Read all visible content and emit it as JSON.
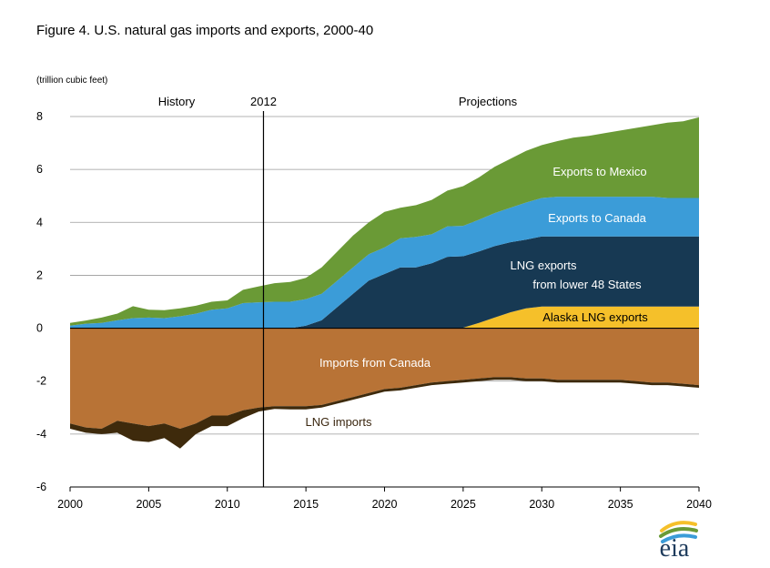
{
  "chart_data": {
    "type": "area",
    "title": "Figure 4. U.S. natural gas imports and exports, 2000-40",
    "ylabel": "(trillion cubic feet)",
    "xlabel": "",
    "xlim": [
      2000,
      2040
    ],
    "ylim": [
      -6,
      8
    ],
    "x_ticks": [
      2000,
      2005,
      2010,
      2015,
      2020,
      2025,
      2030,
      2035,
      2040
    ],
    "y_ticks": [
      -6,
      -4,
      -2,
      0,
      2,
      4,
      6,
      8
    ],
    "grid": true,
    "annotations": {
      "history": "History",
      "divider_year_label": "2012",
      "divider_year": 2012.3,
      "projections": "Projections"
    },
    "x": [
      2000,
      2001,
      2002,
      2003,
      2004,
      2005,
      2006,
      2007,
      2008,
      2009,
      2010,
      2011,
      2012,
      2013,
      2014,
      2015,
      2016,
      2017,
      2018,
      2019,
      2020,
      2021,
      2022,
      2023,
      2024,
      2025,
      2026,
      2027,
      2028,
      2029,
      2030,
      2031,
      2032,
      2033,
      2034,
      2035,
      2036,
      2037,
      2038,
      2039,
      2040
    ],
    "series": [
      {
        "name": "Alaska LNG exports",
        "label": "Alaska LNG exports",
        "color": "#f5c02a",
        "label_color": "#000000",
        "group": "exports",
        "values": [
          0,
          0,
          0,
          0,
          0,
          0,
          0,
          0,
          0,
          0,
          0,
          0,
          0,
          0,
          0,
          0,
          0,
          0,
          0,
          0,
          0,
          0,
          0,
          0,
          0,
          0.02,
          0.2,
          0.4,
          0.6,
          0.75,
          0.82,
          0.82,
          0.82,
          0.82,
          0.82,
          0.82,
          0.82,
          0.82,
          0.82,
          0.82,
          0.82
        ]
      },
      {
        "name": "LNG exports from lower 48 States",
        "label_line1": "LNG exports",
        "label_line2": "from lower 48 States",
        "color": "#173953",
        "label_color": "#ffffff",
        "group": "exports",
        "values": [
          0,
          0,
          0,
          0,
          0,
          0,
          0,
          0,
          0,
          0,
          0,
          0,
          0,
          0,
          0,
          0.1,
          0.3,
          0.8,
          1.3,
          1.8,
          2.05,
          2.3,
          2.3,
          2.45,
          2.7,
          2.7,
          2.7,
          2.7,
          2.65,
          2.6,
          2.65,
          2.65,
          2.65,
          2.65,
          2.65,
          2.65,
          2.65,
          2.65,
          2.65,
          2.65,
          2.65
        ]
      },
      {
        "name": "Exports to Canada",
        "label": "Exports to Canada",
        "color": "#3b9cd8",
        "label_color": "#ffffff",
        "group": "exports",
        "values": [
          0.1,
          0.17,
          0.2,
          0.3,
          0.38,
          0.4,
          0.38,
          0.45,
          0.55,
          0.7,
          0.75,
          0.95,
          0.98,
          1.0,
          1.0,
          1.0,
          1.0,
          1.0,
          1.0,
          1.0,
          1.0,
          1.1,
          1.15,
          1.1,
          1.15,
          1.15,
          1.2,
          1.25,
          1.3,
          1.4,
          1.45,
          1.5,
          1.5,
          1.5,
          1.5,
          1.5,
          1.5,
          1.5,
          1.45,
          1.45,
          1.45
        ]
      },
      {
        "name": "Exports to Mexico",
        "label": "Exports to Mexico",
        "color": "#6a9a36",
        "label_color": "#ffffff",
        "group": "exports",
        "values": [
          0.1,
          0.12,
          0.2,
          0.25,
          0.45,
          0.3,
          0.3,
          0.3,
          0.3,
          0.3,
          0.3,
          0.5,
          0.6,
          0.7,
          0.75,
          0.8,
          1.0,
          1.1,
          1.2,
          1.2,
          1.35,
          1.15,
          1.2,
          1.3,
          1.35,
          1.5,
          1.6,
          1.75,
          1.85,
          1.95,
          2.0,
          2.1,
          2.23,
          2.3,
          2.4,
          2.5,
          2.6,
          2.7,
          2.85,
          2.9,
          3.05
        ]
      },
      {
        "name": "Imports from Canada",
        "label": "Imports from Canada",
        "color": "#b87336",
        "label_color": "#ffffff",
        "group": "imports",
        "values": [
          -3.6,
          -3.75,
          -3.8,
          -3.5,
          -3.6,
          -3.7,
          -3.6,
          -3.8,
          -3.6,
          -3.3,
          -3.3,
          -3.1,
          -3.0,
          -2.95,
          -2.95,
          -2.95,
          -2.9,
          -2.75,
          -2.6,
          -2.45,
          -2.3,
          -2.25,
          -2.15,
          -2.05,
          -2.0,
          -1.95,
          -1.9,
          -1.85,
          -1.85,
          -1.9,
          -1.9,
          -1.95,
          -1.95,
          -1.95,
          -1.95,
          -1.95,
          -2.0,
          -2.05,
          -2.05,
          -2.1,
          -2.15
        ]
      },
      {
        "name": "LNG imports",
        "label": "LNG imports",
        "color": "#3e2a0c",
        "label_color": "#3b2710",
        "group": "imports",
        "values": [
          -0.2,
          -0.2,
          -0.2,
          -0.45,
          -0.65,
          -0.6,
          -0.55,
          -0.75,
          -0.4,
          -0.4,
          -0.4,
          -0.3,
          -0.15,
          -0.1,
          -0.12,
          -0.12,
          -0.1,
          -0.1,
          -0.1,
          -0.1,
          -0.1,
          -0.1,
          -0.1,
          -0.1,
          -0.1,
          -0.1,
          -0.1,
          -0.1,
          -0.1,
          -0.1,
          -0.1,
          -0.1,
          -0.1,
          -0.1,
          -0.1,
          -0.1,
          -0.1,
          -0.1,
          -0.1,
          -0.1,
          -0.1
        ]
      }
    ]
  },
  "logo": {
    "text": "eia",
    "colors": [
      "#f5c02a",
      "#6a9a36",
      "#3b9cd8"
    ]
  }
}
